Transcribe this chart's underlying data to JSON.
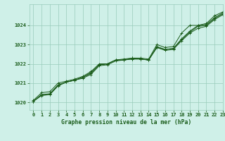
{
  "title": "Graphe pression niveau de la mer (hPa)",
  "bg_color": "#cff0e8",
  "grid_color": "#99ccbb",
  "line_color": "#1a5c1a",
  "xlim": [
    -0.5,
    23
  ],
  "ylim": [
    1019.6,
    1025.1
  ],
  "yticks": [
    1020,
    1021,
    1022,
    1023,
    1024
  ],
  "xticks": [
    0,
    1,
    2,
    3,
    4,
    5,
    6,
    7,
    8,
    9,
    10,
    11,
    12,
    13,
    14,
    15,
    16,
    17,
    18,
    19,
    20,
    21,
    22,
    23
  ],
  "series": [
    [
      1020.05,
      1020.4,
      1020.4,
      1020.85,
      1021.05,
      1021.15,
      1021.3,
      1021.55,
      1021.95,
      1022.0,
      1022.2,
      1022.25,
      1022.3,
      1022.3,
      1022.25,
      1023.0,
      1022.85,
      1022.9,
      1023.6,
      1024.0,
      1024.0,
      1024.1,
      1024.5,
      1024.7
    ],
    [
      1020.05,
      1020.35,
      1020.4,
      1020.9,
      1021.05,
      1021.15,
      1021.25,
      1021.45,
      1021.9,
      1021.95,
      1022.15,
      1022.2,
      1022.25,
      1022.25,
      1022.2,
      1022.9,
      1022.75,
      1022.8,
      1023.3,
      1023.7,
      1024.0,
      1024.05,
      1024.4,
      1024.65
    ],
    [
      1020.05,
      1020.4,
      1020.45,
      1020.9,
      1021.05,
      1021.15,
      1021.3,
      1021.5,
      1021.95,
      1022.0,
      1022.2,
      1022.2,
      1022.25,
      1022.25,
      1022.2,
      1022.85,
      1022.75,
      1022.8,
      1023.25,
      1023.65,
      1023.95,
      1024.0,
      1024.35,
      1024.6
    ],
    [
      1020.1,
      1020.5,
      1020.55,
      1021.0,
      1021.1,
      1021.2,
      1021.35,
      1021.6,
      1022.0,
      1022.0,
      1022.2,
      1022.2,
      1022.3,
      1022.25,
      1022.2,
      1022.85,
      1022.7,
      1022.75,
      1023.2,
      1023.6,
      1023.85,
      1023.95,
      1024.3,
      1024.55
    ]
  ]
}
